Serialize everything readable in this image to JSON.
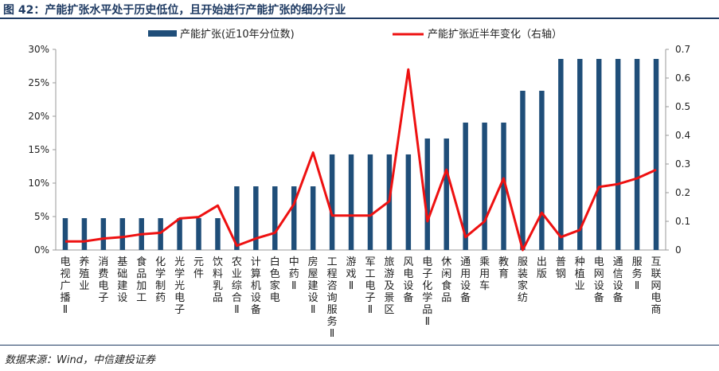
{
  "header": {
    "title": "图 42：产能扩张水平处于历史低位，且开始进行产能扩张的细分行业"
  },
  "footer": {
    "source": "数据来源：Wind，中信建投证券"
  },
  "colors": {
    "bar": "#1f4e79",
    "line": "#ee1111",
    "title": "#1f3b63"
  },
  "chart_data": {
    "type": "bar",
    "categories": [
      "电视广播Ⅱ",
      "养殖业",
      "消费电子",
      "基础建设",
      "食品加工",
      "化学制药",
      "光学光电子",
      "元件",
      "饮料乳品",
      "农业综合Ⅱ",
      "计算机设备",
      "白色家电",
      "中药Ⅱ",
      "房屋建设Ⅱ",
      "工程咨询服务Ⅱ",
      "游戏Ⅱ",
      "军工电子Ⅱ",
      "旅游及景区",
      "风电设备",
      "电子化学品Ⅱ",
      "休闲食品",
      "通用设备",
      "乘用车",
      "教育",
      "服装家纺",
      "出版",
      "普钢",
      "种植业",
      "电网设备",
      "通信设备",
      "服务Ⅱ",
      "互联网电商"
    ],
    "series": [
      {
        "name": "产能扩张(近10年分位数)",
        "axis": "left",
        "type": "bar",
        "values": [
          0.0476,
          0.0476,
          0.0476,
          0.0476,
          0.0476,
          0.0476,
          0.0476,
          0.0476,
          0.0476,
          0.0952,
          0.0952,
          0.0952,
          0.0952,
          0.0952,
          0.1429,
          0.1429,
          0.1429,
          0.1429,
          0.1429,
          0.1667,
          0.1667,
          0.1905,
          0.1905,
          0.1905,
          0.2381,
          0.2381,
          0.2857,
          0.2857,
          0.2857,
          0.2857,
          0.2857,
          0.2857
        ]
      },
      {
        "name": "产能扩张近半年变化（右轴）",
        "axis": "right",
        "type": "line",
        "values": [
          0.03,
          0.03,
          0.04,
          0.045,
          0.055,
          0.06,
          0.11,
          0.115,
          0.155,
          0.015,
          0.04,
          0.06,
          0.16,
          0.34,
          0.12,
          0.12,
          0.12,
          0.17,
          0.63,
          0.1,
          0.28,
          0.045,
          0.1,
          0.25,
          0.0,
          0.13,
          0.045,
          0.07,
          0.22,
          0.23,
          0.25,
          0.28
        ]
      }
    ],
    "y_left": {
      "ticks": [
        "0%",
        "5%",
        "10%",
        "15%",
        "20%",
        "25%",
        "30%"
      ],
      "min": 0,
      "max": 0.3
    },
    "y_right": {
      "ticks": [
        "0",
        "0.1",
        "0.2",
        "0.3",
        "0.4",
        "0.5",
        "0.6",
        "0.7"
      ],
      "min": 0,
      "max": 0.7
    },
    "legend_position": "top",
    "grid": false
  }
}
